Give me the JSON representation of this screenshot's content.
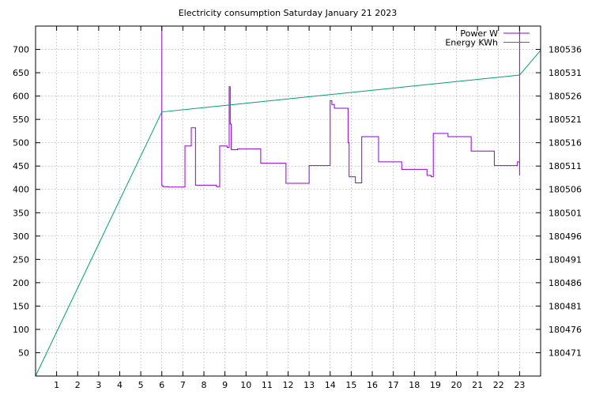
{
  "chart_data": {
    "type": "line",
    "title": "Electricity consumption Saturday January 21 2023",
    "xlim": [
      0,
      24
    ],
    "x_ticks": [
      1,
      2,
      3,
      4,
      5,
      6,
      7,
      8,
      9,
      10,
      11,
      12,
      13,
      14,
      15,
      16,
      17,
      18,
      19,
      20,
      21,
      22,
      23
    ],
    "ylim": [
      0,
      750
    ],
    "y_ticks": [
      50,
      100,
      150,
      200,
      250,
      300,
      350,
      400,
      450,
      500,
      550,
      600,
      650,
      700
    ],
    "y2lim": [
      180466,
      180541
    ],
    "y2_ticks": [
      180471,
      180476,
      180481,
      180486,
      180491,
      180496,
      180501,
      180506,
      180511,
      180516,
      180521,
      180526,
      180531,
      180536
    ],
    "grid": true,
    "legend_position": "top-right",
    "colors": {
      "power": "#9400d3",
      "energy": "#009e73"
    },
    "series": [
      {
        "name": "Power W",
        "axis": "left",
        "x": [
          6.0,
          6.0,
          6.0,
          6.05,
          6.05,
          6.3,
          6.3,
          7.1,
          7.1,
          7.4,
          7.4,
          7.6,
          7.6,
          8.6,
          8.6,
          8.75,
          8.75,
          9.1,
          9.1,
          9.2,
          9.2,
          9.25,
          9.25,
          9.3,
          9.3,
          9.6,
          9.6,
          10.7,
          10.7,
          11.9,
          11.9,
          13.0,
          13.0,
          14.0,
          14.0,
          14.08,
          14.08,
          14.2,
          14.2,
          14.85,
          14.85,
          14.9,
          14.9,
          15.2,
          15.2,
          15.5,
          15.5,
          16.3,
          16.3,
          17.4,
          17.4,
          18.6,
          18.6,
          18.8,
          18.8,
          18.9,
          18.9,
          19.6,
          19.6,
          20.7,
          20.7,
          21.8,
          21.8,
          22.9,
          22.9,
          23.0,
          23.0,
          23.0
        ],
        "values": [
          750,
          750,
          408,
          408,
          406,
          406,
          405,
          405,
          493,
          493,
          532,
          532,
          409,
          409,
          406,
          406,
          493,
          493,
          490,
          490,
          620,
          620,
          540,
          540,
          485,
          485,
          487,
          487,
          456,
          456,
          413,
          413,
          451,
          451,
          590,
          590,
          582,
          582,
          574,
          574,
          500,
          500,
          427,
          427,
          414,
          414,
          513,
          513,
          459,
          459,
          443,
          443,
          430,
          430,
          427,
          427,
          520,
          520,
          513,
          513,
          482,
          482,
          451,
          451,
          459,
          459,
          430,
          750
        ]
      },
      {
        "name": "Energy KWh",
        "axis": "right",
        "x": [
          0,
          6.0,
          23.0,
          24.0
        ],
        "values": [
          180466.0,
          180522.6,
          180530.5,
          180535.8
        ]
      }
    ]
  }
}
